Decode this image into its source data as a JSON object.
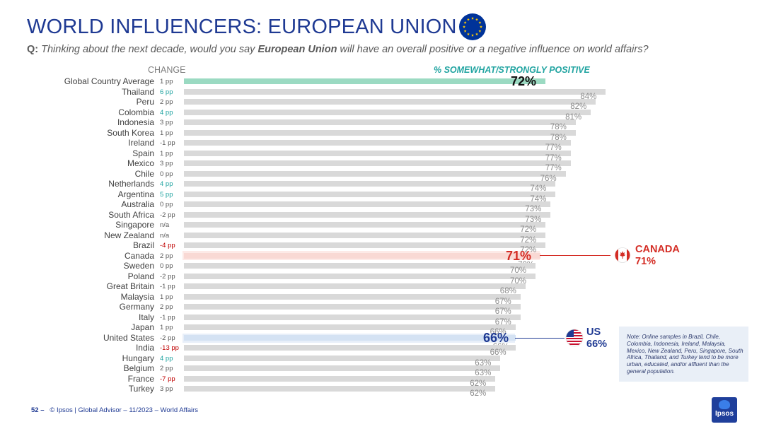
{
  "header": {
    "title": "WORLD INFLUENCERS: EUROPEAN UNION",
    "question_prefix": "Q:",
    "question_part1": "Thinking about the next decade, would you say ",
    "question_bold": "European Union",
    "question_part2": " will have an overall positive or a negative influence on world affairs?"
  },
  "column_headers": {
    "change": "CHANGE",
    "positive": "% SOMEWHAT/STRONGLY POSITIVE"
  },
  "colors": {
    "title": "#1f3a93",
    "bar": "#d9d9d9",
    "global_bar": "#9bdac2",
    "canada": "#d42d25",
    "us": "#1f3a93",
    "change_positive": "#21a4a1",
    "change_negative": "#c00000",
    "change_neutral": "#595959"
  },
  "chart_data": {
    "type": "bar",
    "orientation": "horizontal",
    "categories": [
      "Global Country Average",
      "Thailand",
      "Peru",
      "Colombia",
      "Indonesia",
      "South Korea",
      "Ireland",
      "Spain",
      "Mexico",
      "Chile",
      "Netherlands",
      "Argentina",
      "Australia",
      "South Africa",
      "Singapore",
      "New Zealand",
      "Brazil",
      "Canada",
      "Sweden",
      "Poland",
      "Great Britain",
      "Malaysia",
      "Germany",
      "Italy",
      "Japan",
      "United States",
      "India",
      "Hungary",
      "Belgium",
      "France",
      "Turkey"
    ],
    "values": [
      72,
      84,
      82,
      81,
      78,
      78,
      77,
      77,
      77,
      76,
      74,
      74,
      73,
      73,
      72,
      72,
      72,
      71,
      70,
      70,
      68,
      67,
      67,
      67,
      66,
      66,
      66,
      63,
      63,
      62,
      62
    ],
    "value_labels": [
      "72%",
      "84%",
      "82%",
      "81%",
      "78%",
      "78%",
      "77%",
      "77%",
      "77%",
      "76%",
      "74%",
      "74%",
      "73%",
      "73%",
      "72%",
      "72%",
      "72%",
      "71%",
      "70%",
      "70%",
      "68%",
      "67%",
      "67%",
      "67%",
      "66%",
      "66%",
      "66%",
      "63%",
      "63%",
      "62%",
      "62%"
    ],
    "changes": [
      "1 pp",
      "6 pp",
      "2 pp",
      "4 pp",
      "3 pp",
      "1 pp",
      "-1 pp",
      "1 pp",
      "3 pp",
      "0 pp",
      "4 pp",
      "5 pp",
      "0 pp",
      "-2 pp",
      "n/a",
      "n/a",
      "-4 pp",
      "2 pp",
      "0 pp",
      "-2 pp",
      "-1 pp",
      "1 pp",
      "2 pp",
      "-1 pp",
      "1 pp",
      "-2 pp",
      "-13 pp",
      "4 pp",
      "2 pp",
      "-7 pp",
      "3 pp"
    ],
    "change_types": [
      "neutral",
      "pos",
      "neutral",
      "pos",
      "neutral",
      "neutral",
      "neutral",
      "neutral",
      "neutral",
      "neutral",
      "pos",
      "pos",
      "neutral",
      "neutral",
      "neutral",
      "neutral",
      "neg",
      "neutral",
      "neutral",
      "neutral",
      "neutral",
      "neutral",
      "neutral",
      "neutral",
      "neutral",
      "neutral",
      "neg",
      "pos",
      "neutral",
      "neg",
      "neutral"
    ],
    "xlim": [
      0,
      100
    ]
  },
  "callouts": {
    "global_value": "72%",
    "canada_value": "71%",
    "us_value": "66%",
    "canada_name": "CANADA",
    "canada_pct": "71%",
    "us_name": "US",
    "us_pct": "66%"
  },
  "note": "Note: Online samples in Brazil, Chile, Colombia, Indonesia, Ireland, Malaysia, Mexico, New Zealand, Peru, Singapore, South Africa, Thailand, and Turkey tend to be more urban, educated, and/or affluent than the general population.",
  "footer": {
    "page": "52 –",
    "text": "© Ipsos | Global Advisor – 11/2023 – World Affairs"
  },
  "logo_text": "Ipsos",
  "icons": {
    "eu_flag": "eu-flag-icon",
    "canada_flag": "canada-flag-icon",
    "us_flag": "us-flag-icon",
    "logo": "ipsos-logo"
  }
}
